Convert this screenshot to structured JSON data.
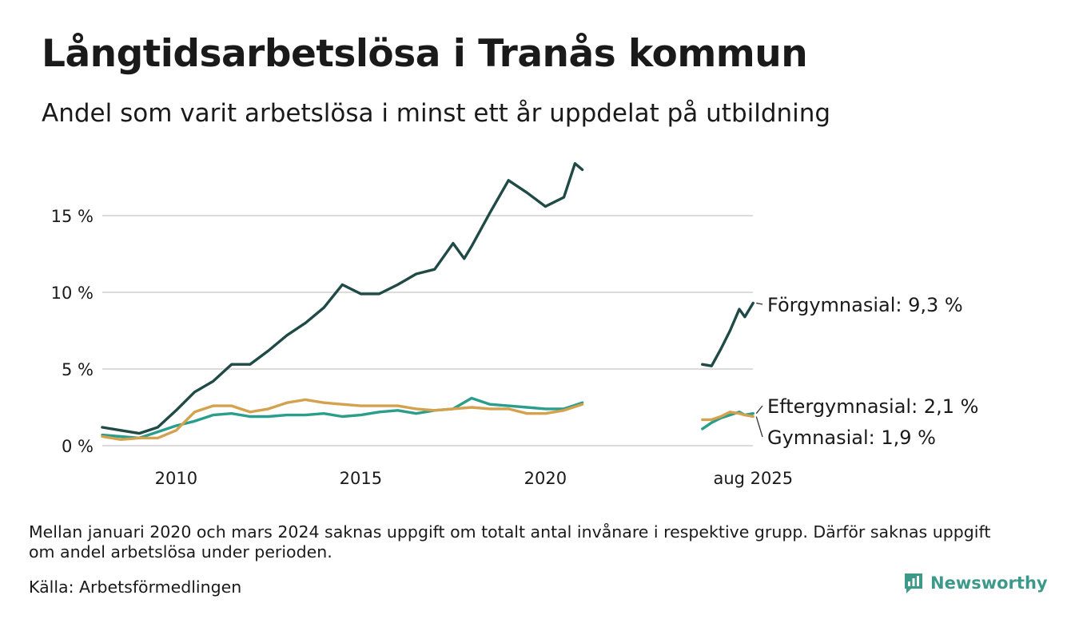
{
  "title": "Långtidsarbetslösa i Tranås kommun",
  "subtitle": "Andel som varit arbetslösa i minst ett år uppdelat på utbildning",
  "note": "Mellan januari 2020 och mars 2024 saknas uppgift om totalt antal invånare i respektive grupp. Därför saknas uppgift om andel arbetslösa under perioden.",
  "source": "Källa: Arbetsförmedlingen",
  "brand": "Newsworthy",
  "chart_data": {
    "type": "line",
    "title": "Långtidsarbetslösa i Tranås kommun",
    "subtitle": "Andel som varit arbetslösa i minst ett år uppdelat på utbildning",
    "ylabel": "",
    "xlabel": "",
    "ylim": [
      0,
      18.5
    ],
    "yticks": [
      0,
      5,
      10,
      15
    ],
    "ytick_labels": [
      "0 %",
      "5 %",
      "10 %",
      "15 %"
    ],
    "xticks": [
      2010,
      2015,
      2020,
      2025.625
    ],
    "xtick_labels": [
      "2010",
      "2015",
      "2020",
      "aug 2025"
    ],
    "grid": true,
    "legend": "end-of-line labels",
    "gap": [
      2021.1,
      2024.2
    ],
    "series": [
      {
        "name": "Förgymnasial",
        "end_label": "Förgymnasial: 9,3 %",
        "color": "#1f4a45",
        "points": [
          [
            2008.0,
            1.2
          ],
          [
            2008.5,
            1.0
          ],
          [
            2009.0,
            0.8
          ],
          [
            2009.5,
            1.2
          ],
          [
            2010.0,
            2.3
          ],
          [
            2010.5,
            3.5
          ],
          [
            2011.0,
            4.2
          ],
          [
            2011.5,
            5.3
          ],
          [
            2012.0,
            5.3
          ],
          [
            2012.5,
            6.2
          ],
          [
            2013.0,
            7.2
          ],
          [
            2013.5,
            8.0
          ],
          [
            2014.0,
            9.0
          ],
          [
            2014.5,
            10.5
          ],
          [
            2015.0,
            9.9
          ],
          [
            2015.5,
            9.9
          ],
          [
            2016.0,
            10.5
          ],
          [
            2016.5,
            11.2
          ],
          [
            2017.0,
            11.5
          ],
          [
            2017.5,
            13.2
          ],
          [
            2017.8,
            12.2
          ],
          [
            2018.0,
            13.0
          ],
          [
            2018.5,
            15.2
          ],
          [
            2019.0,
            17.3
          ],
          [
            2019.5,
            16.5
          ],
          [
            2020.0,
            15.6
          ],
          [
            2020.5,
            16.2
          ],
          [
            2020.8,
            18.4
          ],
          [
            2021.0,
            18.0
          ],
          [
            2024.25,
            5.3
          ],
          [
            2024.5,
            5.2
          ],
          [
            2024.75,
            6.3
          ],
          [
            2025.0,
            7.5
          ],
          [
            2025.25,
            8.9
          ],
          [
            2025.4,
            8.4
          ],
          [
            2025.625,
            9.3
          ]
        ]
      },
      {
        "name": "Eftergymnasial",
        "end_label": "Eftergymnasial: 2,1 %",
        "color": "#2a9d8c",
        "points": [
          [
            2008.0,
            0.7
          ],
          [
            2008.5,
            0.6
          ],
          [
            2009.0,
            0.5
          ],
          [
            2009.5,
            0.9
          ],
          [
            2010.0,
            1.3
          ],
          [
            2010.5,
            1.6
          ],
          [
            2011.0,
            2.0
          ],
          [
            2011.5,
            2.1
          ],
          [
            2012.0,
            1.9
          ],
          [
            2012.5,
            1.9
          ],
          [
            2013.0,
            2.0
          ],
          [
            2013.5,
            2.0
          ],
          [
            2014.0,
            2.1
          ],
          [
            2014.5,
            1.9
          ],
          [
            2015.0,
            2.0
          ],
          [
            2015.5,
            2.2
          ],
          [
            2016.0,
            2.3
          ],
          [
            2016.5,
            2.1
          ],
          [
            2017.0,
            2.3
          ],
          [
            2017.5,
            2.4
          ],
          [
            2018.0,
            3.1
          ],
          [
            2018.5,
            2.7
          ],
          [
            2019.0,
            2.6
          ],
          [
            2019.5,
            2.5
          ],
          [
            2020.0,
            2.4
          ],
          [
            2020.5,
            2.4
          ],
          [
            2021.0,
            2.8
          ],
          [
            2024.25,
            1.1
          ],
          [
            2024.5,
            1.5
          ],
          [
            2024.75,
            1.8
          ],
          [
            2025.0,
            2.0
          ],
          [
            2025.25,
            2.2
          ],
          [
            2025.4,
            2.0
          ],
          [
            2025.625,
            2.1
          ]
        ]
      },
      {
        "name": "Gymnasial",
        "end_label": "Gymnasial: 1,9 %",
        "color": "#d4a24e",
        "points": [
          [
            2008.0,
            0.6
          ],
          [
            2008.5,
            0.4
          ],
          [
            2009.0,
            0.5
          ],
          [
            2009.5,
            0.5
          ],
          [
            2010.0,
            1.0
          ],
          [
            2010.5,
            2.2
          ],
          [
            2011.0,
            2.6
          ],
          [
            2011.5,
            2.6
          ],
          [
            2012.0,
            2.2
          ],
          [
            2012.5,
            2.4
          ],
          [
            2013.0,
            2.8
          ],
          [
            2013.5,
            3.0
          ],
          [
            2014.0,
            2.8
          ],
          [
            2014.5,
            2.7
          ],
          [
            2015.0,
            2.6
          ],
          [
            2015.5,
            2.6
          ],
          [
            2016.0,
            2.6
          ],
          [
            2016.5,
            2.4
          ],
          [
            2017.0,
            2.3
          ],
          [
            2017.5,
            2.4
          ],
          [
            2018.0,
            2.5
          ],
          [
            2018.5,
            2.4
          ],
          [
            2019.0,
            2.4
          ],
          [
            2019.5,
            2.1
          ],
          [
            2020.0,
            2.1
          ],
          [
            2020.5,
            2.3
          ],
          [
            2021.0,
            2.7
          ],
          [
            2024.25,
            1.7
          ],
          [
            2024.5,
            1.7
          ],
          [
            2024.75,
            1.9
          ],
          [
            2025.0,
            2.2
          ],
          [
            2025.25,
            2.1
          ],
          [
            2025.4,
            2.0
          ],
          [
            2025.625,
            1.9
          ]
        ]
      }
    ]
  }
}
